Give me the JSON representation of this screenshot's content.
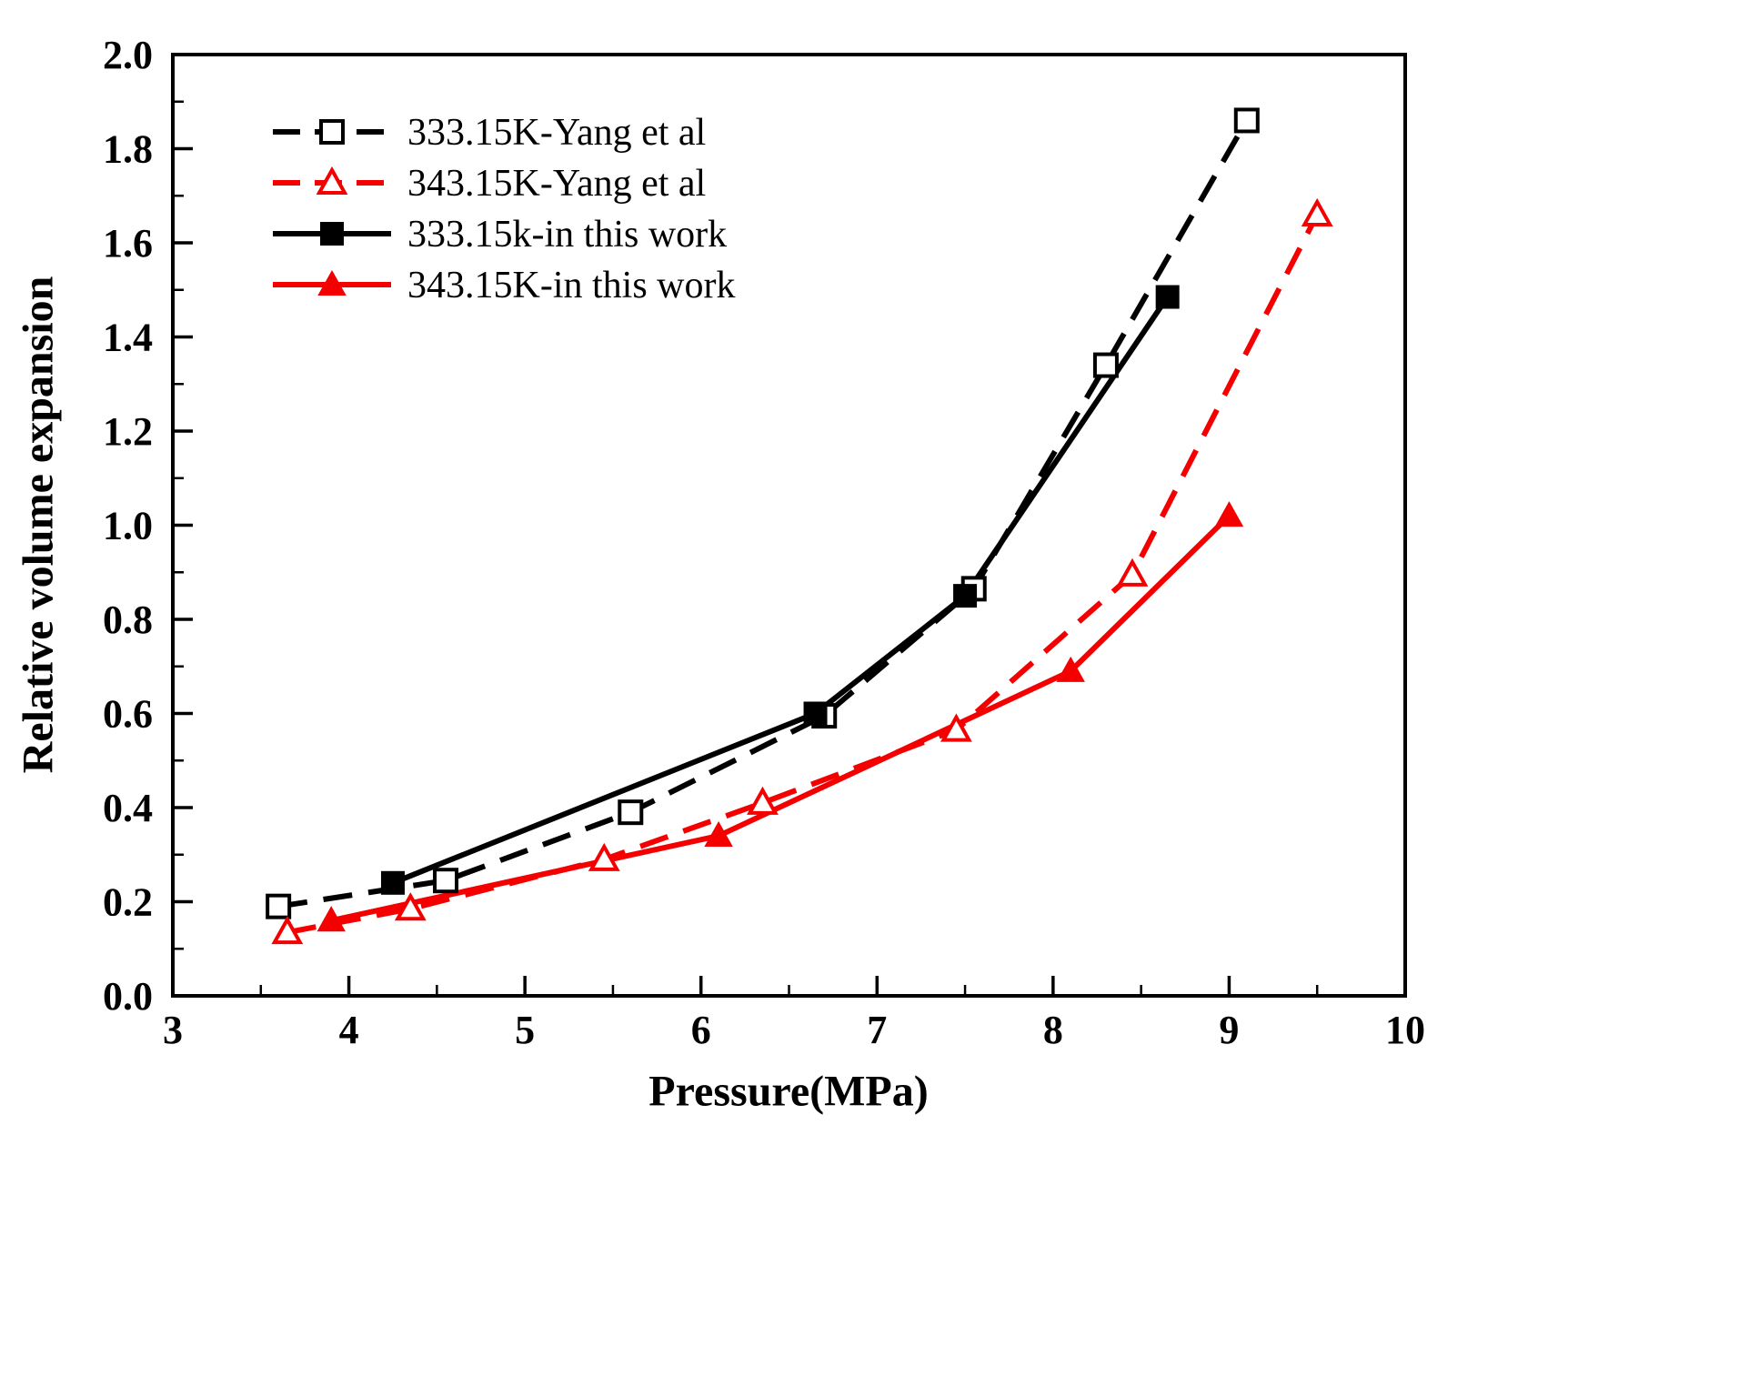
{
  "chart_data": {
    "type": "line",
    "title": "",
    "xlabel": "Pressure(MPa)",
    "ylabel": "Relative volume expansion",
    "xlim": [
      3,
      10
    ],
    "ylim": [
      0,
      2
    ],
    "grid": false,
    "legend_position": "top-left-inside",
    "xticks": [
      "3",
      "4",
      "5",
      "6",
      "7",
      "8",
      "9",
      "10"
    ],
    "yticks": [
      "0.0",
      "0.2",
      "0.4",
      "0.6",
      "0.8",
      "1.0",
      "1.2",
      "1.4",
      "1.6",
      "1.8",
      "2.0"
    ],
    "colors": {
      "black": "#000000",
      "red": "#f40000"
    },
    "series": [
      {
        "name": "333.15K-Yang et al",
        "color": "#000000",
        "dash": true,
        "marker": "square-open",
        "x": [
          3.6,
          4.55,
          5.6,
          6.7,
          7.55,
          8.3,
          9.1
        ],
        "y": [
          0.19,
          0.245,
          0.39,
          0.595,
          0.865,
          1.34,
          1.86
        ]
      },
      {
        "name": "343.15K-Yang et al",
        "color": "#f40000",
        "dash": true,
        "marker": "triangle-open",
        "x": [
          3.65,
          4.35,
          5.45,
          6.35,
          7.45,
          8.45,
          9.5
        ],
        "y": [
          0.135,
          0.185,
          0.29,
          0.41,
          0.565,
          0.895,
          1.66
        ]
      },
      {
        "name": "333.15k-in this work",
        "color": "#000000",
        "dash": false,
        "marker": "square-filled",
        "x": [
          4.25,
          6.65,
          7.5,
          8.65
        ],
        "y": [
          0.24,
          0.6,
          0.85,
          1.485
        ]
      },
      {
        "name": "343.15K-in this work",
        "color": "#f40000",
        "dash": false,
        "marker": "triangle-filled",
        "x": [
          3.9,
          6.1,
          8.1,
          9.0
        ],
        "y": [
          0.16,
          0.34,
          0.69,
          1.02
        ]
      }
    ]
  }
}
